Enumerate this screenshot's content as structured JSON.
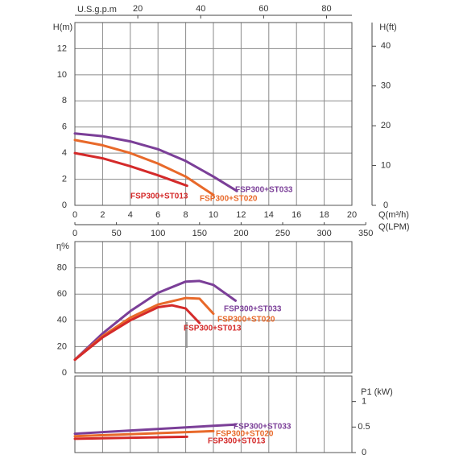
{
  "chart_data": [
    {
      "type": "line",
      "ylabel": "H(m)",
      "y2label": "H(ft)",
      "xlabel": "Q(m³/h)",
      "x2label": "Q(LPM)",
      "x3label": "U.S.g.p.m",
      "xlim": [
        0,
        20
      ],
      "xticks": [
        0,
        2,
        4,
        6,
        8,
        10,
        12,
        14,
        16,
        18,
        20
      ],
      "x2lim": [
        0,
        333.3
      ],
      "x2ticks": [
        0,
        50,
        100,
        150,
        200,
        250,
        300,
        350
      ],
      "x3lim": [
        0,
        88.06
      ],
      "x3ticks": [
        20,
        40,
        60,
        80
      ],
      "ylim": [
        0,
        14
      ],
      "yticks": [
        0,
        2,
        4,
        6,
        8,
        10,
        12
      ],
      "y2lim": [
        0,
        45.93
      ],
      "y2ticks": [
        0,
        10,
        20,
        30,
        40
      ],
      "grid": true,
      "series": [
        {
          "name": "FSP300+ST033",
          "color": "#7b3f98",
          "x": [
            0,
            2,
            4,
            6,
            8,
            10,
            11.7
          ],
          "values": [
            5.5,
            5.3,
            4.9,
            4.3,
            3.4,
            2.2,
            1.1
          ]
        },
        {
          "name": "FSP300+ST020",
          "color": "#e8692a",
          "x": [
            0,
            2,
            4,
            6,
            8,
            10
          ],
          "values": [
            5.0,
            4.6,
            4.0,
            3.2,
            2.2,
            0.8
          ]
        },
        {
          "name": "FSP300+ST013",
          "color": "#d42a2a",
          "x": [
            0,
            2,
            4,
            6,
            8.1
          ],
          "values": [
            4.0,
            3.6,
            3.0,
            2.3,
            1.5
          ]
        }
      ]
    },
    {
      "type": "line",
      "ylabel": "η%",
      "xlim": [
        0,
        20
      ],
      "ylim": [
        0,
        100
      ],
      "yticks": [
        0,
        20,
        40,
        60,
        80
      ],
      "grid": true,
      "series": [
        {
          "name": "FSP300+ST033",
          "color": "#7b3f98",
          "x": [
            0,
            2,
            4,
            6,
            8,
            9,
            10,
            11.6
          ],
          "values": [
            10,
            30,
            47,
            61,
            69.5,
            70,
            67,
            55
          ]
        },
        {
          "name": "FSP300+ST020",
          "color": "#e8692a",
          "x": [
            0,
            2,
            4,
            6,
            8,
            9,
            10
          ],
          "values": [
            10,
            28,
            42,
            52,
            57,
            56.5,
            45
          ]
        },
        {
          "name": "FSP300+ST013",
          "color": "#d42a2a",
          "x": [
            0,
            2,
            4,
            6,
            7,
            8,
            9
          ],
          "values": [
            10,
            27,
            40,
            50,
            51.5,
            49,
            38
          ]
        }
      ]
    },
    {
      "type": "line",
      "y2label": "P1 (kW)",
      "xlim": [
        0,
        20
      ],
      "y2lim": [
        0,
        1.5
      ],
      "y2ticks": [
        0,
        0.5,
        1
      ],
      "grid": false,
      "series": [
        {
          "name": "FSP300+ST033",
          "color": "#7b3f98",
          "axis": "y2",
          "x": [
            0,
            11.6
          ],
          "values": [
            0.37,
            0.55
          ]
        },
        {
          "name": "FSP300+ST020",
          "color": "#e8692a",
          "axis": "y2",
          "x": [
            0,
            10
          ],
          "values": [
            0.32,
            0.42
          ]
        },
        {
          "name": "FSP300+ST013",
          "color": "#d42a2a",
          "axis": "y2",
          "x": [
            0,
            8.1
          ],
          "values": [
            0.27,
            0.31
          ]
        }
      ]
    }
  ]
}
